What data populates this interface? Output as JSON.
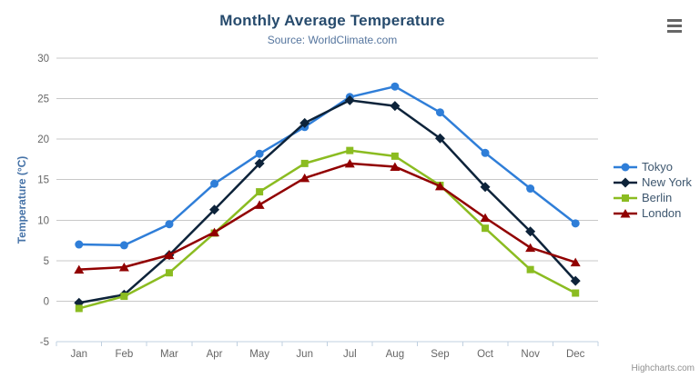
{
  "chart": {
    "credits_label": "Highcharts.com",
    "icons": {
      "context_menu": "hamburger-icon"
    },
    "palette": {
      "title_color": "#274b6d",
      "subtitle_color": "#55759e",
      "axis_title_color": "#4572a7",
      "tick_label_color": "#666666",
      "legend_text_color": "#3e576f",
      "gridline_color": "#c8c8c8",
      "axis_line_color": "#c0d0e0",
      "credits_color": "#909090"
    }
  },
  "chart_data": {
    "type": "line",
    "title": "Monthly Average Temperature",
    "subtitle": "Source: WorldClimate.com",
    "xlabel": "",
    "ylabel": "Temperature (°C)",
    "categories": [
      "Jan",
      "Feb",
      "Mar",
      "Apr",
      "May",
      "Jun",
      "Jul",
      "Aug",
      "Sep",
      "Oct",
      "Nov",
      "Dec"
    ],
    "ylim": [
      -5,
      30
    ],
    "yticks": [
      -5,
      0,
      5,
      10,
      15,
      20,
      25,
      30
    ],
    "grid": true,
    "legend_position": "right",
    "series": [
      {
        "name": "Tokyo",
        "color": "#2f7ed8",
        "marker": "circle",
        "values": [
          7.0,
          6.9,
          9.5,
          14.5,
          18.2,
          21.5,
          25.2,
          26.5,
          23.3,
          18.3,
          13.9,
          9.6
        ]
      },
      {
        "name": "New York",
        "color": "#0d233a",
        "marker": "diamond",
        "values": [
          -0.2,
          0.8,
          5.7,
          11.3,
          17.0,
          22.0,
          24.8,
          24.1,
          20.1,
          14.1,
          8.6,
          2.5
        ]
      },
      {
        "name": "Berlin",
        "color": "#8bbc21",
        "marker": "square",
        "values": [
          -0.9,
          0.6,
          3.5,
          8.4,
          13.5,
          17.0,
          18.6,
          17.9,
          14.3,
          9.0,
          3.9,
          1.0
        ]
      },
      {
        "name": "London",
        "color": "#910000",
        "marker": "triangle",
        "values": [
          3.9,
          4.2,
          5.7,
          8.5,
          11.9,
          15.2,
          17.0,
          16.6,
          14.2,
          10.3,
          6.6,
          4.8
        ]
      }
    ]
  }
}
